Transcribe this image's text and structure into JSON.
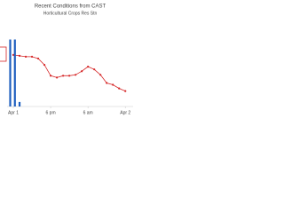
{
  "chart_data": {
    "type": "line",
    "title": "Recent Conditions from CAST",
    "subtitle": "Horticultural Crops Res Stn",
    "x": [
      0,
      2,
      4,
      6,
      8,
      10,
      12,
      14,
      16,
      18,
      20,
      22,
      24,
      26,
      28,
      30,
      32,
      34,
      36
    ],
    "xlim": [
      -2,
      38.5
    ],
    "xticks": [
      {
        "value": 0,
        "label": "Apr 1"
      },
      {
        "value": 12,
        "label": "6 pm"
      },
      {
        "value": 24,
        "label": "6 am"
      },
      {
        "value": 36,
        "label": "Apr 2"
      }
    ],
    "ylim": [
      0,
      100
    ],
    "series": [
      {
        "type": "line",
        "color": "#d62728",
        "values": [
          57,
          56,
          55,
          55,
          53,
          46,
          34,
          32,
          34,
          34,
          35,
          39,
          44,
          41,
          35,
          26,
          24,
          20,
          17
        ]
      },
      {
        "type": "bar",
        "color": "#1f5fbf",
        "x": [
          -1,
          0.5,
          2
        ],
        "values": [
          74,
          74,
          5
        ]
      }
    ]
  }
}
